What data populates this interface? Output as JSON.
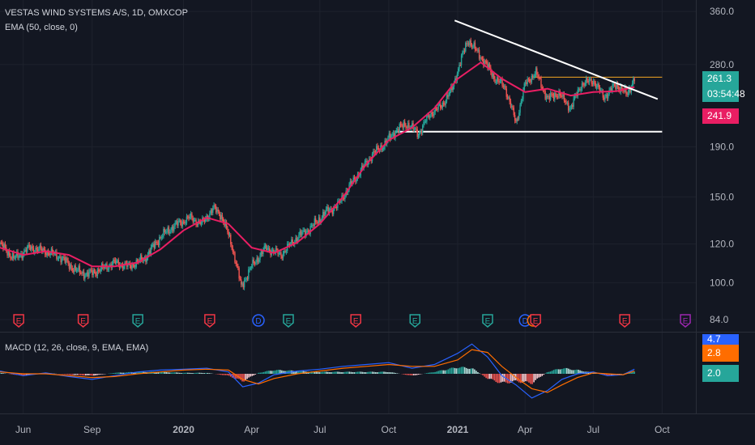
{
  "header": {
    "symbol_line": "VESTAS WIND SYSTEMS A/S, 1D, OMXCOP",
    "ema_label": "EMA (50, close, 0)",
    "macd_label": "MACD (12, 26, close, 9, EMA, EMA)"
  },
  "price_badges": {
    "last": "261.3",
    "countdown": "03:54:48",
    "ema": "241.9",
    "last_color": "#26a69a",
    "ema_color": "#e91e63"
  },
  "macd_badges": {
    "macd": "4.7",
    "signal": "2.8",
    "hist": "2.0",
    "macd_color": "#2962ff",
    "signal_color": "#ff6d00",
    "hist_color": "#26a69a"
  },
  "chart_data": [
    {
      "type": "line",
      "panel": "price",
      "title": "VESTAS WIND SYSTEMS A/S, 1D, OMXCOP",
      "scale": "log",
      "y_ticks": [
        "360.0",
        "280.0",
        "190.0",
        "150.0",
        "120.0",
        "100.0",
        "84.0"
      ],
      "y_tick_values": [
        360,
        280,
        190,
        150,
        120,
        100,
        84
      ],
      "ylim": [
        84,
        380
      ],
      "x_ticks": [
        "Jun",
        "Sep",
        "2020",
        "Apr",
        "Jul",
        "Oct",
        "2021",
        "Apr",
        "Jul",
        "Oct"
      ],
      "x_tick_dates": [
        "2019-06-01",
        "2019-09-01",
        "2020-01-01",
        "2020-04-01",
        "2020-07-01",
        "2020-10-01",
        "2021-01-01",
        "2021-04-01",
        "2021-07-01",
        "2021-10-01"
      ],
      "xlim": [
        "2019-05-01",
        "2021-11-15"
      ],
      "series": [
        {
          "name": "EMA (50, close, 0)",
          "color": "#e91e63",
          "x": [
            "2019-05-01",
            "2019-06-01",
            "2019-07-01",
            "2019-08-01",
            "2019-09-01",
            "2019-10-01",
            "2019-11-01",
            "2019-12-01",
            "2020-01-01",
            "2020-02-01",
            "2020-03-01",
            "2020-04-01",
            "2020-05-01",
            "2020-06-01",
            "2020-07-01",
            "2020-08-01",
            "2020-09-01",
            "2020-10-01",
            "2020-11-01",
            "2020-12-01",
            "2021-01-01",
            "2021-02-01",
            "2021-03-01",
            "2021-04-01",
            "2021-05-01",
            "2021-06-01",
            "2021-07-01",
            "2021-08-01",
            "2021-08-25"
          ],
          "values": [
            118,
            114,
            116,
            114,
            108,
            108,
            110,
            117,
            128,
            136,
            132,
            118,
            115,
            121,
            132,
            150,
            175,
            196,
            208,
            228,
            262,
            283,
            262,
            246,
            250,
            242,
            246,
            247,
            252
          ]
        }
      ],
      "price_path": {
        "x": [
          "2019-05-01",
          "2019-05-20",
          "2019-06-10",
          "2019-07-01",
          "2019-07-20",
          "2019-08-10",
          "2019-08-25",
          "2019-09-10",
          "2019-10-01",
          "2019-10-20",
          "2019-11-10",
          "2019-12-01",
          "2019-12-20",
          "2020-01-10",
          "2020-01-25",
          "2020-02-10",
          "2020-02-20",
          "2020-03-05",
          "2020-03-18",
          "2020-04-01",
          "2020-04-20",
          "2020-05-10",
          "2020-06-01",
          "2020-06-20",
          "2020-07-10",
          "2020-07-25",
          "2020-08-10",
          "2020-08-25",
          "2020-09-10",
          "2020-09-25",
          "2020-10-10",
          "2020-10-25",
          "2020-11-10",
          "2020-11-25",
          "2020-12-10",
          "2020-12-25",
          "2021-01-05",
          "2021-01-15",
          "2021-01-25",
          "2021-02-05",
          "2021-02-20",
          "2021-03-05",
          "2021-03-20",
          "2021-04-01",
          "2021-04-15",
          "2021-05-01",
          "2021-05-15",
          "2021-06-01",
          "2021-06-15",
          "2021-07-01",
          "2021-07-15",
          "2021-08-01",
          "2021-08-15",
          "2021-08-25"
        ],
        "values": [
          120,
          112,
          118,
          116,
          113,
          106,
          104,
          106,
          110,
          108,
          112,
          124,
          131,
          136,
          132,
          142,
          138,
          120,
          98,
          108,
          118,
          114,
          124,
          130,
          140,
          144,
          158,
          170,
          184,
          192,
          205,
          212,
          202,
          222,
          230,
          250,
          285,
          315,
          300,
          285,
          262,
          252,
          212,
          255,
          270,
          238,
          245,
          228,
          255,
          260,
          240,
          255,
          243,
          263
        ]
      },
      "horizontal_lines": [
        {
          "value": 264,
          "color": "#f5a623",
          "from": "2021-04-10",
          "to": "2021-10-01"
        },
        {
          "value": 204,
          "color": "#ffffff",
          "from": "2020-10-10",
          "to": "2021-10-01"
        }
      ],
      "trend_line": {
        "color": "#ffffff",
        "from": {
          "x": "2020-12-28",
          "y": 345
        },
        "to": {
          "x": "2021-09-25",
          "y": 238
        }
      },
      "events": [
        {
          "x": "2019-05-26",
          "label": "E",
          "color": "#f23645",
          "shape": "pin"
        },
        {
          "x": "2019-08-20",
          "label": "E",
          "color": "#f23645",
          "shape": "pin"
        },
        {
          "x": "2019-11-01",
          "label": "E",
          "color": "#26a69a",
          "shape": "pin"
        },
        {
          "x": "2020-02-05",
          "label": "E",
          "color": "#f23645",
          "shape": "pin"
        },
        {
          "x": "2020-04-10",
          "label": "D",
          "color": "#2962ff",
          "shape": "circle"
        },
        {
          "x": "2020-05-20",
          "label": "E",
          "color": "#26a69a",
          "shape": "pin"
        },
        {
          "x": "2020-08-18",
          "label": "E",
          "color": "#f23645",
          "shape": "pin"
        },
        {
          "x": "2020-11-05",
          "label": "E",
          "color": "#26a69a",
          "shape": "pin"
        },
        {
          "x": "2021-02-10",
          "label": "E",
          "color": "#26a69a",
          "shape": "pin"
        },
        {
          "x": "2021-04-01",
          "label": "D",
          "color": "#2962ff",
          "shape": "circle"
        },
        {
          "x": "2021-04-12",
          "label": "E",
          "color": "#ff6d00",
          "shape": "circle"
        },
        {
          "x": "2021-04-15",
          "label": "E",
          "color": "#f23645",
          "shape": "pin"
        },
        {
          "x": "2021-08-12",
          "label": "E",
          "color": "#f23645",
          "shape": "pin"
        },
        {
          "x": "2021-11-01",
          "label": "E",
          "color": "#9c27b0",
          "shape": "pin"
        }
      ]
    },
    {
      "type": "line",
      "panel": "macd",
      "title": "MACD (12, 26, close, 9, EMA, EMA)",
      "ylim": [
        -40,
        40
      ],
      "series": [
        {
          "name": "MACD",
          "color": "#2962ff",
          "x": [
            "2019-05-01",
            "2019-06-01",
            "2019-07-01",
            "2019-08-01",
            "2019-09-01",
            "2019-10-01",
            "2019-11-01",
            "2019-12-01",
            "2020-01-01",
            "2020-02-01",
            "2020-03-01",
            "2020-03-20",
            "2020-04-10",
            "2020-05-01",
            "2020-06-01",
            "2020-07-01",
            "2020-08-01",
            "2020-09-01",
            "2020-10-01",
            "2020-11-01",
            "2020-12-01",
            "2021-01-01",
            "2021-01-20",
            "2021-02-10",
            "2021-03-01",
            "2021-03-20",
            "2021-04-10",
            "2021-05-01",
            "2021-05-20",
            "2021-06-10",
            "2021-07-01",
            "2021-07-20",
            "2021-08-10",
            "2021-08-25"
          ],
          "values": [
            3,
            -2,
            1,
            -3,
            -6,
            -2,
            2,
            4,
            5,
            6,
            2,
            -14,
            -10,
            -1,
            3,
            5,
            8,
            10,
            12,
            6,
            10,
            22,
            32,
            18,
            -2,
            -12,
            -26,
            -18,
            -6,
            0,
            2,
            -2,
            -1,
            5
          ]
        },
        {
          "name": "Signal",
          "color": "#ff6d00",
          "x": [
            "2019-05-01",
            "2019-06-01",
            "2019-07-01",
            "2019-08-01",
            "2019-09-01",
            "2019-10-01",
            "2019-11-01",
            "2019-12-01",
            "2020-01-01",
            "2020-02-01",
            "2020-03-01",
            "2020-03-20",
            "2020-04-10",
            "2020-05-01",
            "2020-06-01",
            "2020-07-01",
            "2020-08-01",
            "2020-09-01",
            "2020-10-01",
            "2020-11-01",
            "2020-12-01",
            "2021-01-01",
            "2021-01-20",
            "2021-02-10",
            "2021-03-01",
            "2021-03-20",
            "2021-04-10",
            "2021-05-01",
            "2021-05-20",
            "2021-06-10",
            "2021-07-01",
            "2021-07-20",
            "2021-08-10",
            "2021-08-25"
          ],
          "values": [
            2,
            0,
            0,
            -2,
            -4,
            -3,
            0,
            2,
            4,
            5,
            4,
            -6,
            -11,
            -5,
            0,
            3,
            6,
            8,
            10,
            8,
            8,
            15,
            26,
            23,
            8,
            -4,
            -16,
            -20,
            -12,
            -4,
            1,
            0,
            -1,
            3
          ]
        }
      ]
    }
  ]
}
